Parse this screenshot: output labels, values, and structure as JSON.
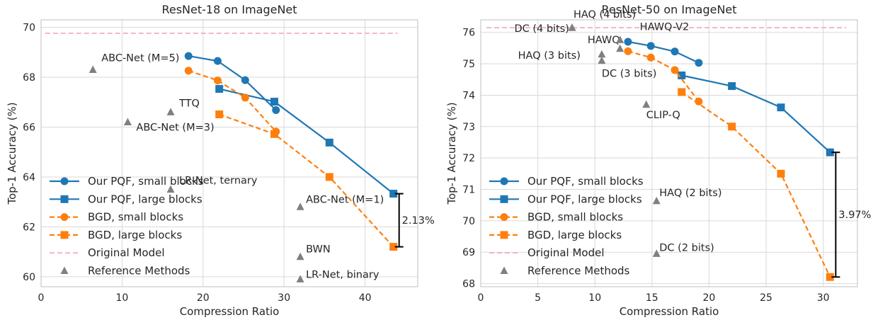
{
  "chart_data": [
    {
      "type": "line",
      "title": "ResNet-18 on ImageNet",
      "xlabel": "Compression Ratio",
      "ylabel": "Top-1 Accuracy (%)",
      "xlim": [
        0,
        46.5
      ],
      "ylim": [
        59.6,
        70.3
      ],
      "xticks": [
        0,
        10,
        20,
        30,
        40
      ],
      "yticks": [
        60,
        62,
        64,
        66,
        68,
        70
      ],
      "grid": true,
      "legend_position": "bottom-left",
      "series": [
        {
          "name": "Our PQF, small blocks",
          "color": "#1f77b4",
          "marker": "circle",
          "linestyle": "solid",
          "points": [
            [
              18.2,
              68.85
            ],
            [
              21.8,
              68.65
            ],
            [
              25.2,
              67.88
            ],
            [
              29.0,
              66.68
            ]
          ]
        },
        {
          "name": "Our PQF, large blocks",
          "color": "#1f77b4",
          "marker": "square",
          "linestyle": "solid",
          "points": [
            [
              22.0,
              67.53
            ],
            [
              28.8,
              67.02
            ],
            [
              35.6,
              65.38
            ],
            [
              43.5,
              63.33
            ]
          ]
        },
        {
          "name": "BGD, small blocks",
          "color": "#ff7f0e",
          "marker": "circle",
          "linestyle": "dashed",
          "points": [
            [
              18.2,
              68.26
            ],
            [
              21.8,
              67.87
            ],
            [
              25.2,
              67.18
            ],
            [
              29.0,
              65.82
            ]
          ]
        },
        {
          "name": "BGD, large blocks",
          "color": "#ff7f0e",
          "marker": "square",
          "linestyle": "dashed",
          "points": [
            [
              22.0,
              66.51
            ],
            [
              28.8,
              65.72
            ],
            [
              35.6,
              64.0
            ],
            [
              43.5,
              61.2
            ]
          ]
        }
      ],
      "original_model": {
        "name": "Original Model",
        "value": 69.76,
        "x_range": [
          0.5,
          44.0
        ],
        "color": "#f4b6c2"
      },
      "reference_methods": {
        "name": "Reference Methods",
        "color": "#808080",
        "points": [
          {
            "label": "ABC-Net (M=5)",
            "x": 6.4,
            "y": 68.3
          },
          {
            "label": "TTQ",
            "x": 16.0,
            "y": 66.6
          },
          {
            "label": "ABC-Net (M=3)",
            "x": 10.7,
            "y": 66.2
          },
          {
            "label": "LR-Net, ternary",
            "x": 16.0,
            "y": 63.5
          },
          {
            "label": "ABC-Net (M=1)",
            "x": 32.0,
            "y": 62.8
          },
          {
            "label": "BWN",
            "x": 32.0,
            "y": 60.8
          },
          {
            "label": "LR-Net, binary",
            "x": 32.0,
            "y": 59.9
          }
        ]
      },
      "gap_annotation": {
        "label": "2.13%",
        "x": 44.2,
        "y_top": 63.33,
        "y_bottom": 61.2
      }
    },
    {
      "type": "line",
      "title": "ResNet-50 on ImageNet",
      "xlabel": "Compression Ratio",
      "ylabel": "Top-1 Accuracy (%)",
      "xlim": [
        0,
        33.0
      ],
      "ylim": [
        67.9,
        76.4
      ],
      "xticks": [
        0,
        5,
        10,
        15,
        20,
        25,
        30
      ],
      "yticks": [
        68,
        69,
        70,
        71,
        72,
        73,
        74,
        75,
        76
      ],
      "grid": true,
      "legend_position": "bottom-left",
      "series": [
        {
          "name": "Our PQF, small blocks",
          "color": "#1f77b4",
          "marker": "circle",
          "linestyle": "solid",
          "points": [
            [
              12.9,
              75.7
            ],
            [
              14.9,
              75.57
            ],
            [
              17.0,
              75.39
            ],
            [
              19.1,
              75.03
            ]
          ]
        },
        {
          "name": "Our PQF, large blocks",
          "color": "#1f77b4",
          "marker": "square",
          "linestyle": "solid",
          "points": [
            [
              17.6,
              74.63
            ],
            [
              22.0,
              74.29
            ],
            [
              26.3,
              73.61
            ],
            [
              30.6,
              72.18
            ]
          ]
        },
        {
          "name": "BGD, small blocks",
          "color": "#ff7f0e",
          "marker": "circle",
          "linestyle": "dashed",
          "points": [
            [
              12.9,
              75.4
            ],
            [
              14.9,
              75.2
            ],
            [
              17.0,
              74.8
            ],
            [
              19.1,
              73.8
            ]
          ]
        },
        {
          "name": "BGD, large blocks",
          "color": "#ff7f0e",
          "marker": "square",
          "linestyle": "dashed",
          "points": [
            [
              17.6,
              74.1
            ],
            [
              22.0,
              73.0
            ],
            [
              26.3,
              71.5
            ],
            [
              30.6,
              68.21
            ]
          ]
        }
      ],
      "original_model": {
        "name": "Original Model",
        "value": 76.15,
        "x_range": [
          0.5,
          32.0
        ],
        "color": "#f4b6c2"
      },
      "reference_methods": {
        "name": "Reference Methods",
        "color": "#808080",
        "points": [
          {
            "label": "HAQ (4 bits)",
            "x": 8.0,
            "y": 76.15
          },
          {
            "label": "DC (4 bits)",
            "x": 8.0,
            "y": 76.15
          },
          {
            "label": "HAQ (3 bits)",
            "x": 10.6,
            "y": 75.3
          },
          {
            "label": "HAWQ",
            "x": 12.2,
            "y": 75.48
          },
          {
            "label": "HAWQ-V2",
            "x": 12.2,
            "y": 75.76
          },
          {
            "label": "DC (3 bits)",
            "x": 10.6,
            "y": 75.1
          },
          {
            "label": "CLIP-Q",
            "x": 14.5,
            "y": 73.7
          },
          {
            "label": "HAQ (2 bits)",
            "x": 15.4,
            "y": 70.63
          },
          {
            "label": "DC (2 bits)",
            "x": 15.4,
            "y": 68.95
          }
        ]
      },
      "gap_annotation": {
        "label": "3.97%",
        "x": 31.1,
        "y_top": 72.18,
        "y_bottom": 68.21
      }
    }
  ]
}
